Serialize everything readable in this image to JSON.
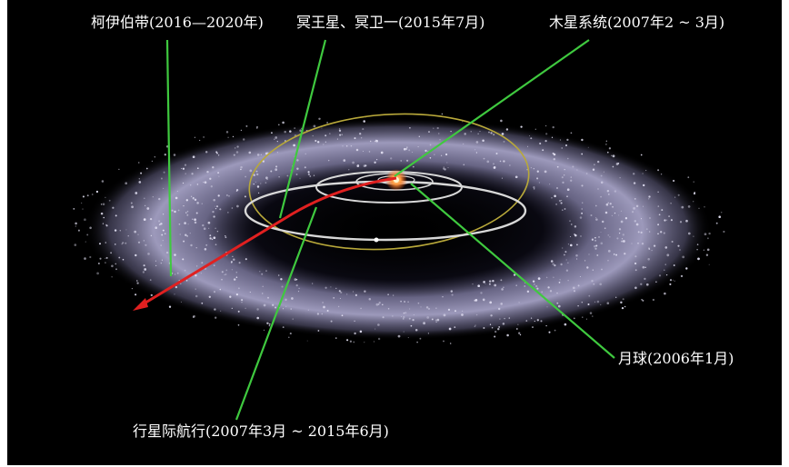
{
  "labels": {
    "kuiper_belt": "柯伊伯带(2016—2020年)",
    "pluto_charon": "冥王星、冥卫一(2015年7月)",
    "jupiter_system": "木星系统(2007年2 ~ 3月)",
    "moon": "月球(2006年1月)",
    "interplanetary_cruise": "行星际航行(2007年3月 ~ 2015年6月)"
  },
  "colors": {
    "background": "#000000",
    "pointer_lines": "#3fc93f",
    "trajectory": "#e02020",
    "planet_orbits": "#d8d8d8",
    "pluto_orbit": "#b8a83a",
    "kuiper_belt_dust": "#b8b4dc",
    "label_text": "#ffffff",
    "sun": "#ff8a30"
  }
}
